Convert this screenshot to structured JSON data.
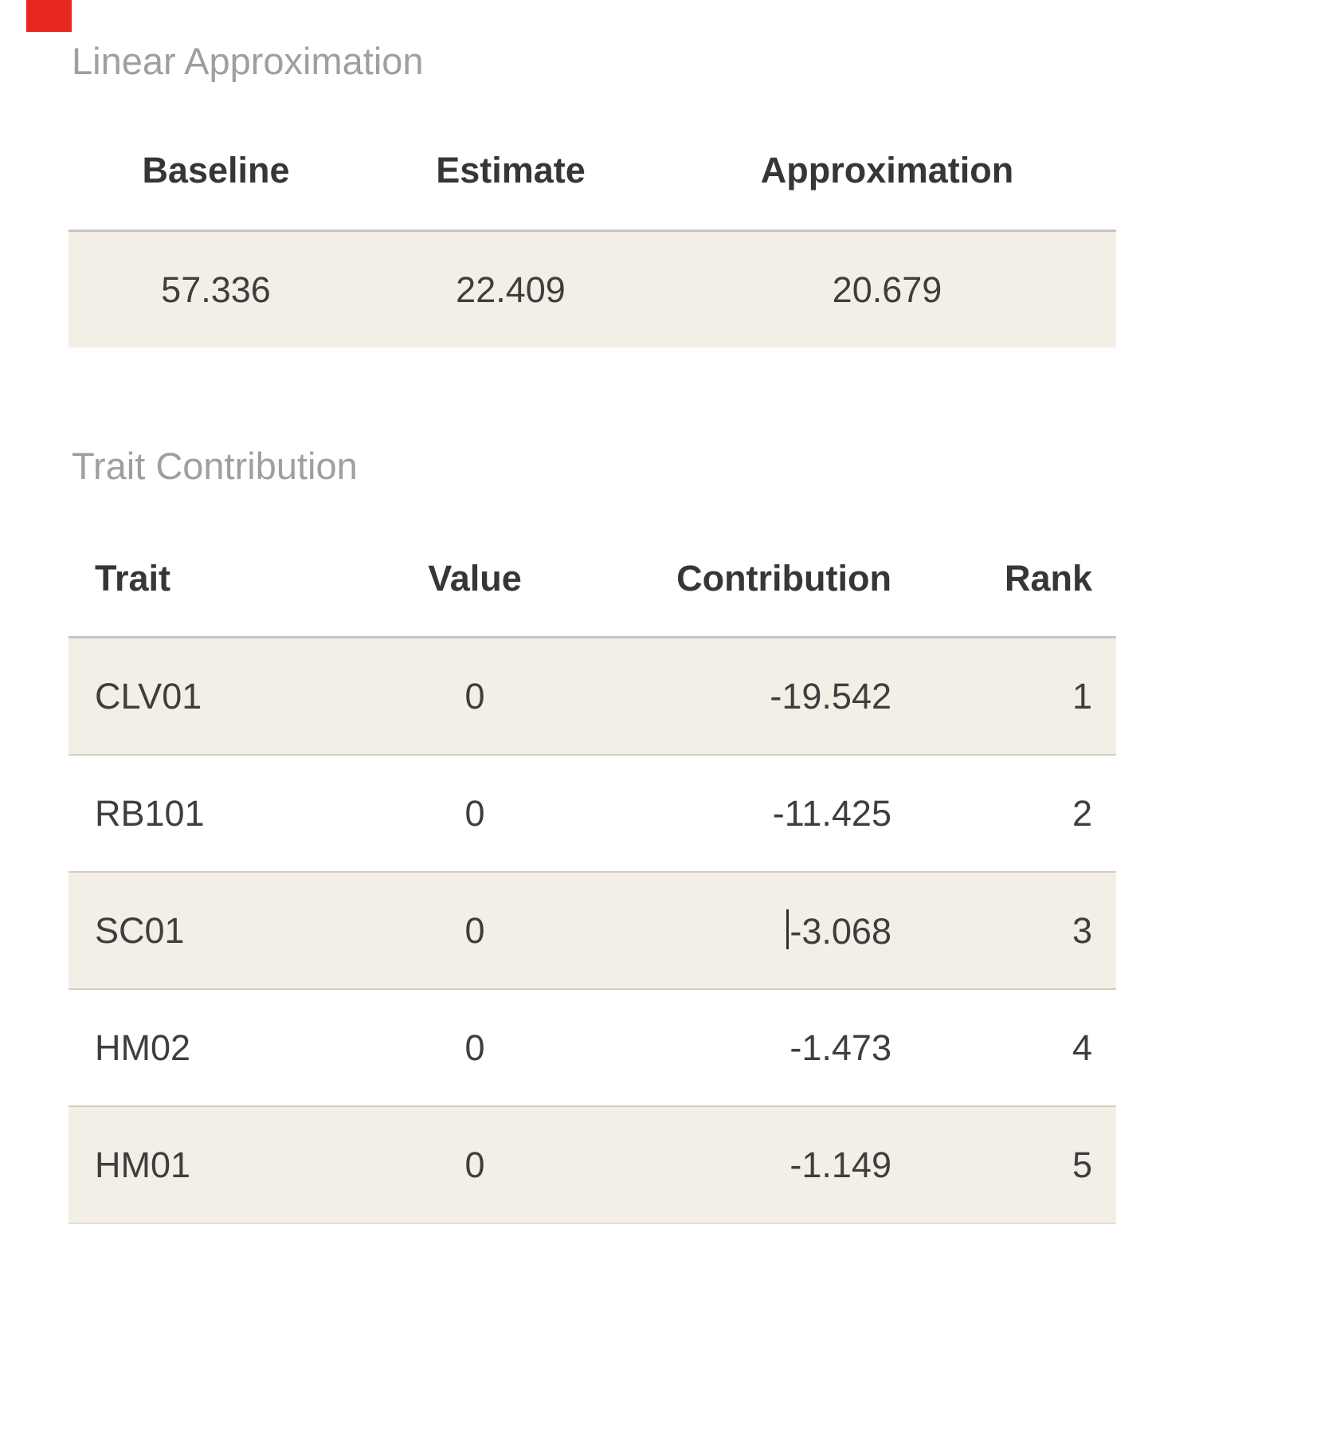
{
  "page": {
    "background": "#ffffff",
    "marker_color": "#e8271f",
    "accent_row_color": "#f4efe6",
    "title_color": "#9f9f9f",
    "text_color": "#3e3e3e"
  },
  "linear_approximation": {
    "title": "Linear Approximation",
    "columns": [
      "Baseline",
      "Estimate",
      "Approximation"
    ],
    "rows": [
      {
        "baseline": "57.336",
        "estimate": "22.409",
        "approximation": "20.679"
      }
    ]
  },
  "trait_contribution": {
    "title": "Trait Contribution",
    "columns": [
      "Trait",
      "Value",
      "Contribution",
      "Rank"
    ],
    "rows": [
      {
        "trait": "CLV01",
        "value": "0",
        "contribution": "-19.542",
        "rank": "1"
      },
      {
        "trait": "RB101",
        "value": "0",
        "contribution": "-11.425",
        "rank": "2"
      },
      {
        "trait": "SC01",
        "value": "0",
        "contribution": "-3.068",
        "rank": "3"
      },
      {
        "trait": "HM02",
        "value": "0",
        "contribution": "-1.473",
        "rank": "4"
      },
      {
        "trait": "HM01",
        "value": "0",
        "contribution": "-1.149",
        "rank": "5"
      }
    ]
  }
}
